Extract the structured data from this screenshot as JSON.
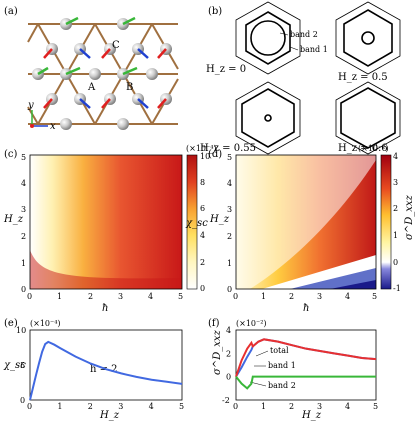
{
  "panels": {
    "a": {
      "label": "(a)",
      "axis_x": "x",
      "axis_y": "y",
      "sites": [
        "A",
        "B",
        "C"
      ]
    },
    "b": {
      "label": "(b)",
      "subpanels": [
        {
          "field": "H_z = 0",
          "annotations": [
            "band 2",
            "band 1"
          ]
        },
        {
          "field": "H_z = 0.5",
          "annotations": []
        },
        {
          "field": "H_z = 0.55",
          "annotations": []
        },
        {
          "field": "H_z = 0.6",
          "annotations": []
        }
      ]
    },
    "c": {
      "label": "(c)",
      "ylabel": "H_z",
      "xlabel": "ħ",
      "colorbar_label": "χ_sc",
      "colorbar_scale": "(×10⁻⁴)",
      "colorbar_ticks": [
        "0",
        "2",
        "4",
        "6",
        "8",
        "10"
      ],
      "xticks": [
        "0",
        "1",
        "2",
        "3",
        "4",
        "5"
      ],
      "yticks": [
        "0",
        "1",
        "2",
        "3",
        "4",
        "5"
      ]
    },
    "d": {
      "label": "(d)",
      "ylabel": "H_z",
      "xlabel": "ħ",
      "colorbar_label": "σ^D_xxz",
      "colorbar_scale": "(×10⁻²)",
      "colorbar_ticks": [
        "-1",
        "0",
        "1",
        "2",
        "3",
        "4"
      ],
      "xticks": [
        "0",
        "1",
        "2",
        "3",
        "4",
        "5"
      ],
      "yticks": [
        "0",
        "1",
        "2",
        "3",
        "4",
        "5"
      ]
    },
    "e": {
      "label": "(e)",
      "ylabel": "χ_sc",
      "xlabel": "H_z",
      "scale": "(×10⁻⁴)",
      "annotation": "h = 2"
    },
    "f": {
      "label": "(f)",
      "ylabel": "σ^D_xxz",
      "xlabel": "H_z",
      "scale": "(×10⁻²)",
      "legend": [
        "total",
        "band 1",
        "band 2"
      ]
    }
  },
  "chart_data": [
    {
      "type": "line",
      "title": "",
      "xlabel": "H_z",
      "ylabel": "χ_sc",
      "xlim": [
        0,
        5
      ],
      "ylim": [
        0,
        10
      ],
      "xticks": [
        0,
        1,
        2,
        3,
        4,
        5
      ],
      "yticks": [
        0,
        5,
        10
      ],
      "series": [
        {
          "x": [
            0,
            0.1,
            0.2,
            0.3,
            0.4,
            0.5,
            0.6,
            0.8,
            1.0,
            1.5,
            2.0,
            2.5,
            3.0,
            3.5,
            4.0,
            4.5,
            5.0
          ],
          "y": [
            0,
            1.8,
            3.6,
            5.3,
            6.9,
            8.0,
            8.3,
            7.9,
            7.4,
            6.2,
            5.2,
            4.4,
            3.8,
            3.3,
            2.9,
            2.6,
            2.3
          ]
        }
      ],
      "annotations": [
        "h = 2"
      ]
    },
    {
      "type": "line",
      "title": "",
      "xlabel": "H_z",
      "ylabel": "σ^D_xxz",
      "xlim": [
        0,
        5
      ],
      "ylim": [
        -2,
        4
      ],
      "xticks": [
        0,
        1,
        2,
        3,
        4,
        5
      ],
      "yticks": [
        -2,
        0,
        2,
        4
      ],
      "series": [
        {
          "name": "total",
          "x": [
            0,
            0.2,
            0.4,
            0.55,
            0.6,
            0.8,
            1.0,
            1.5,
            2.0,
            2.5,
            3.0,
            3.5,
            4.0,
            4.5,
            5.0
          ],
          "y": [
            0,
            0.8,
            1.7,
            2.3,
            2.6,
            3.0,
            3.2,
            3.0,
            2.7,
            2.4,
            2.2,
            2.0,
            1.8,
            1.6,
            1.5
          ]
        },
        {
          "name": "band 1",
          "x": [
            0,
            0.2,
            0.4,
            0.55,
            0.6,
            0.8,
            1.0,
            1.5,
            2.0,
            2.5,
            3.0,
            3.5,
            4.0,
            4.5,
            5.0
          ],
          "y": [
            0,
            1.4,
            2.4,
            2.9,
            2.6,
            3.0,
            3.2,
            3.0,
            2.7,
            2.4,
            2.2,
            2.0,
            1.8,
            1.6,
            1.5
          ]
        },
        {
          "name": "band 2",
          "x": [
            0,
            0.2,
            0.4,
            0.55,
            0.6,
            0.8,
            1.0,
            5.0
          ],
          "y": [
            0,
            -0.6,
            -1.0,
            -0.6,
            0,
            0,
            0,
            0
          ]
        }
      ]
    }
  ],
  "colors": {
    "line": "#4169e1",
    "band1": "#e83030",
    "band2": "#39b739",
    "site": "#bbbbbb",
    "bond": "#a07040"
  }
}
